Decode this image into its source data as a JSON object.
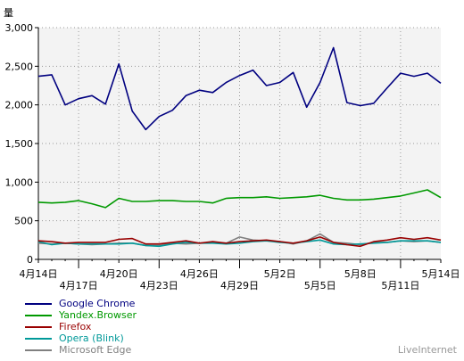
{
  "chart_data": {
    "type": "line",
    "ylabel": "量",
    "ylim": [
      0,
      3000
    ],
    "yticks": [
      "0",
      "500",
      "1,000",
      "1,500",
      "2,000",
      "2,500",
      "3,000"
    ],
    "x": [
      "4月14日",
      "4月15日",
      "4月16日",
      "4月17日",
      "4月18日",
      "4月19日",
      "4月20日",
      "4月21日",
      "4月22日",
      "4月23日",
      "4月24日",
      "4月25日",
      "4月26日",
      "4月27日",
      "4月28日",
      "4月29日",
      "4月30日",
      "5月1日",
      "5月2日",
      "5月3日",
      "5月4日",
      "5月5日",
      "5月6日",
      "5月7日",
      "5月8日",
      "5月9日",
      "5月10日",
      "5月11日",
      "5月12日",
      "5月13日",
      "5月14日"
    ],
    "xticks_row1": [
      "4月14日",
      "4月20日",
      "4月26日",
      "5月2日",
      "5月8日",
      "5月14日"
    ],
    "xticks_row2": [
      "4月17日",
      "4月23日",
      "4月29日",
      "5月5日",
      "5月11日"
    ],
    "series": [
      {
        "name": "Google Chrome",
        "color": "#000080",
        "values": [
          2370,
          2390,
          2000,
          2080,
          2120,
          2010,
          2530,
          1920,
          1680,
          1850,
          1930,
          2120,
          2190,
          2160,
          2290,
          2380,
          2450,
          2250,
          2290,
          2420,
          1970,
          2290,
          2740,
          2030,
          1990,
          2020,
          2220,
          2410,
          2370,
          2410,
          2280
        ]
      },
      {
        "name": "Yandex.Browser",
        "color": "#009900",
        "values": [
          740,
          730,
          740,
          760,
          720,
          670,
          790,
          750,
          750,
          760,
          760,
          750,
          750,
          730,
          790,
          800,
          800,
          810,
          790,
          800,
          810,
          830,
          790,
          770,
          770,
          780,
          800,
          820,
          860,
          900,
          800
        ]
      },
      {
        "name": "Firefox",
        "color": "#990000",
        "values": [
          240,
          230,
          210,
          220,
          220,
          220,
          260,
          270,
          200,
          200,
          220,
          240,
          210,
          230,
          210,
          230,
          240,
          250,
          230,
          210,
          240,
          290,
          220,
          190,
          170,
          230,
          250,
          280,
          260,
          280,
          250
        ]
      },
      {
        "name": "Opera (Blink)",
        "color": "#009999",
        "values": [
          230,
          190,
          210,
          200,
          200,
          200,
          200,
          210,
          180,
          170,
          200,
          220,
          210,
          210,
          200,
          210,
          230,
          240,
          220,
          210,
          230,
          250,
          200,
          190,
          200,
          210,
          220,
          240,
          240,
          240,
          220
        ]
      },
      {
        "name": "Microsoft Edge",
        "color": "#808080",
        "values": [
          210,
          200,
          210,
          200,
          190,
          200,
          210,
          210,
          180,
          180,
          210,
          200,
          210,
          220,
          210,
          290,
          250,
          240,
          230,
          200,
          240,
          330,
          220,
          210,
          190,
          220,
          220,
          240,
          230,
          240,
          220
        ]
      }
    ],
    "credit": "LiveInternet"
  }
}
